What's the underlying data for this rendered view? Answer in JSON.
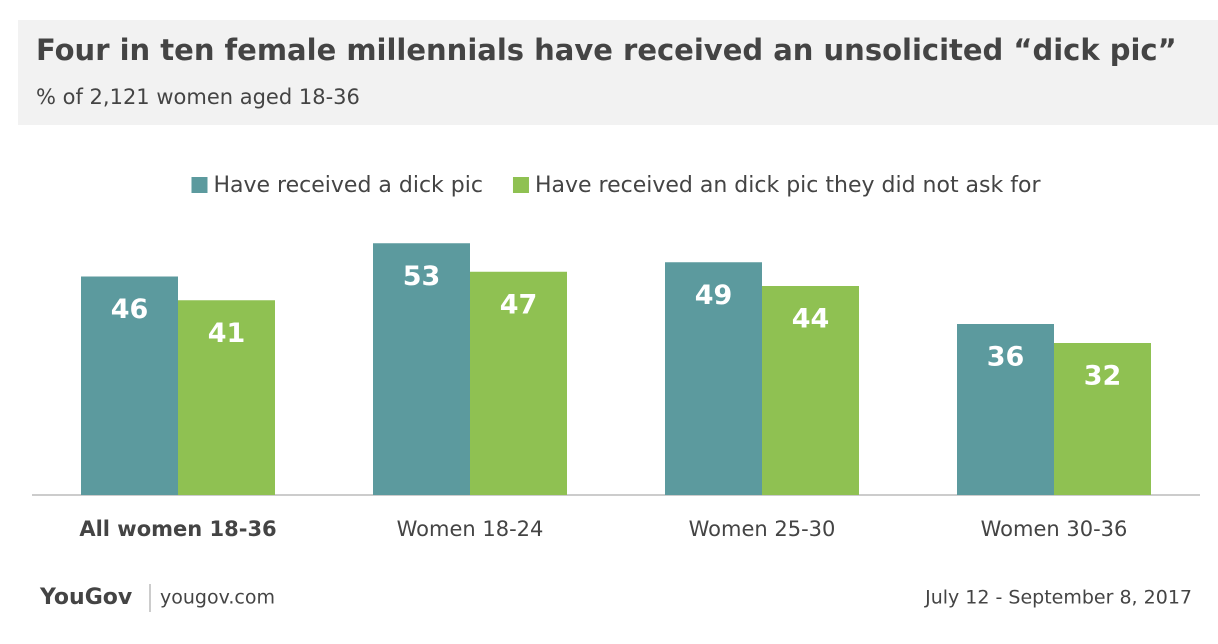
{
  "chart_data": {
    "type": "bar",
    "title": "Four in ten female millennials have received an unsolicited “dick pic”",
    "subtitle": "% of 2,121 women aged 18-36",
    "categories": [
      "All women 18-36",
      "Women 18-24",
      "Women 25-30",
      "Women 30-36"
    ],
    "series": [
      {
        "name": "Have received a dick pic",
        "color": "#5c9a9e",
        "values": [
          46,
          53,
          49,
          36
        ]
      },
      {
        "name": "Have received an dick pic they did not ask for",
        "color": "#8fc152",
        "values": [
          41,
          47,
          44,
          32
        ]
      }
    ],
    "ylim": [
      0,
      60
    ],
    "logo": "YouGov",
    "source": "yougov.com",
    "date": "July 12 - September 8, 2017"
  }
}
